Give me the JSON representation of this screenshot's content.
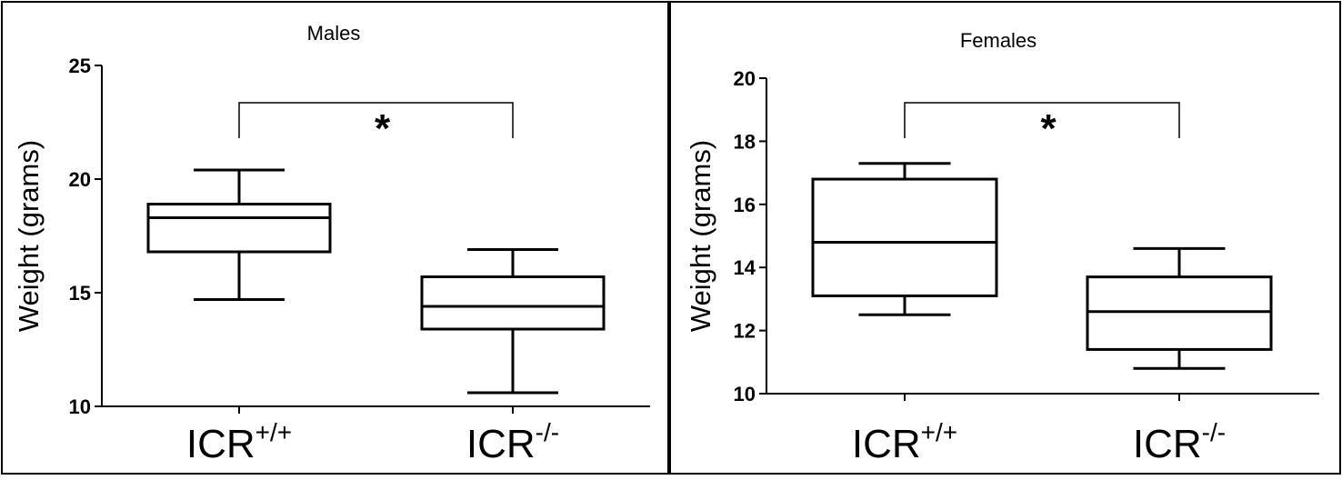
{
  "chart_data": [
    {
      "type": "box",
      "title": "Males",
      "ylabel": "Weight (grams)",
      "ylim": [
        10,
        25
      ],
      "yticks": [
        10,
        15,
        20,
        25
      ],
      "grid": false,
      "categories": [
        {
          "base": "ICR",
          "sup": "+/+"
        },
        {
          "base": "ICR",
          "sup": "-/-"
        }
      ],
      "boxes": [
        {
          "min": 14.7,
          "q1": 16.8,
          "median": 18.3,
          "q3": 18.9,
          "max": 20.4
        },
        {
          "min": 10.6,
          "q1": 13.4,
          "median": 14.4,
          "q3": 15.7,
          "max": 16.9
        }
      ],
      "significance": {
        "between": [
          0,
          1
        ],
        "label": "*"
      }
    },
    {
      "type": "box",
      "title": "Females",
      "ylabel": "Weight (grams)",
      "ylim": [
        10,
        20
      ],
      "yticks": [
        10,
        12,
        14,
        16,
        18,
        20
      ],
      "grid": false,
      "categories": [
        {
          "base": "ICR",
          "sup": "+/+"
        },
        {
          "base": "ICR",
          "sup": "-/-"
        }
      ],
      "boxes": [
        {
          "min": 12.5,
          "q1": 13.1,
          "median": 14.8,
          "q3": 16.8,
          "max": 17.3
        },
        {
          "min": 10.8,
          "q1": 11.4,
          "median": 12.6,
          "q3": 13.7,
          "max": 14.6
        }
      ],
      "significance": {
        "between": [
          0,
          1
        ],
        "label": "*"
      }
    }
  ]
}
